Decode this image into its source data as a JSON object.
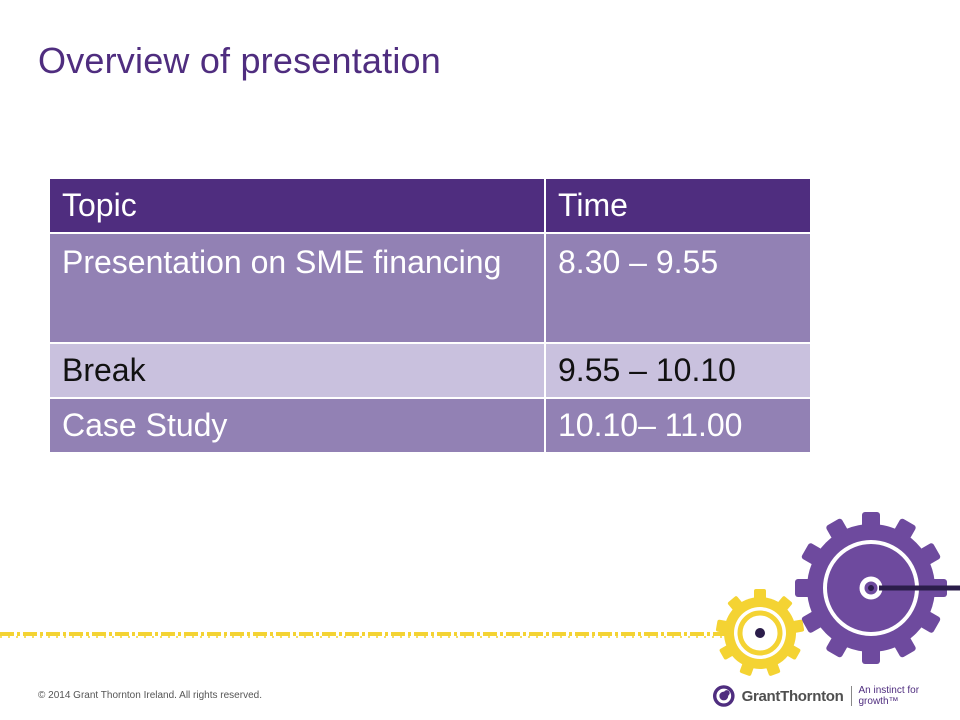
{
  "slide": {
    "title": "Overview of presentation",
    "table": {
      "headers": [
        "Topic",
        "Time"
      ],
      "rows": [
        [
          "Presentation on SME financing",
          "8.30 – 9.55"
        ],
        [
          "Break",
          "9.55 – 10.10"
        ],
        [
          "Case Study",
          "10.10– 11.00"
        ]
      ]
    },
    "footer": "© 2014 Grant Thornton Ireland. All rights reserved.",
    "logo": {
      "name": "GrantThornton",
      "tagline": "An instinct for growth™"
    },
    "colors": {
      "brand_purple": "#4f2d7f",
      "row_dark": "#9281b4",
      "row_light": "#c9c1de",
      "accent_yellow": "#f4d333"
    },
    "icons": [
      "grant-thornton-logo-icon",
      "purple-gear-icon",
      "yellow-gear-icon"
    ]
  }
}
